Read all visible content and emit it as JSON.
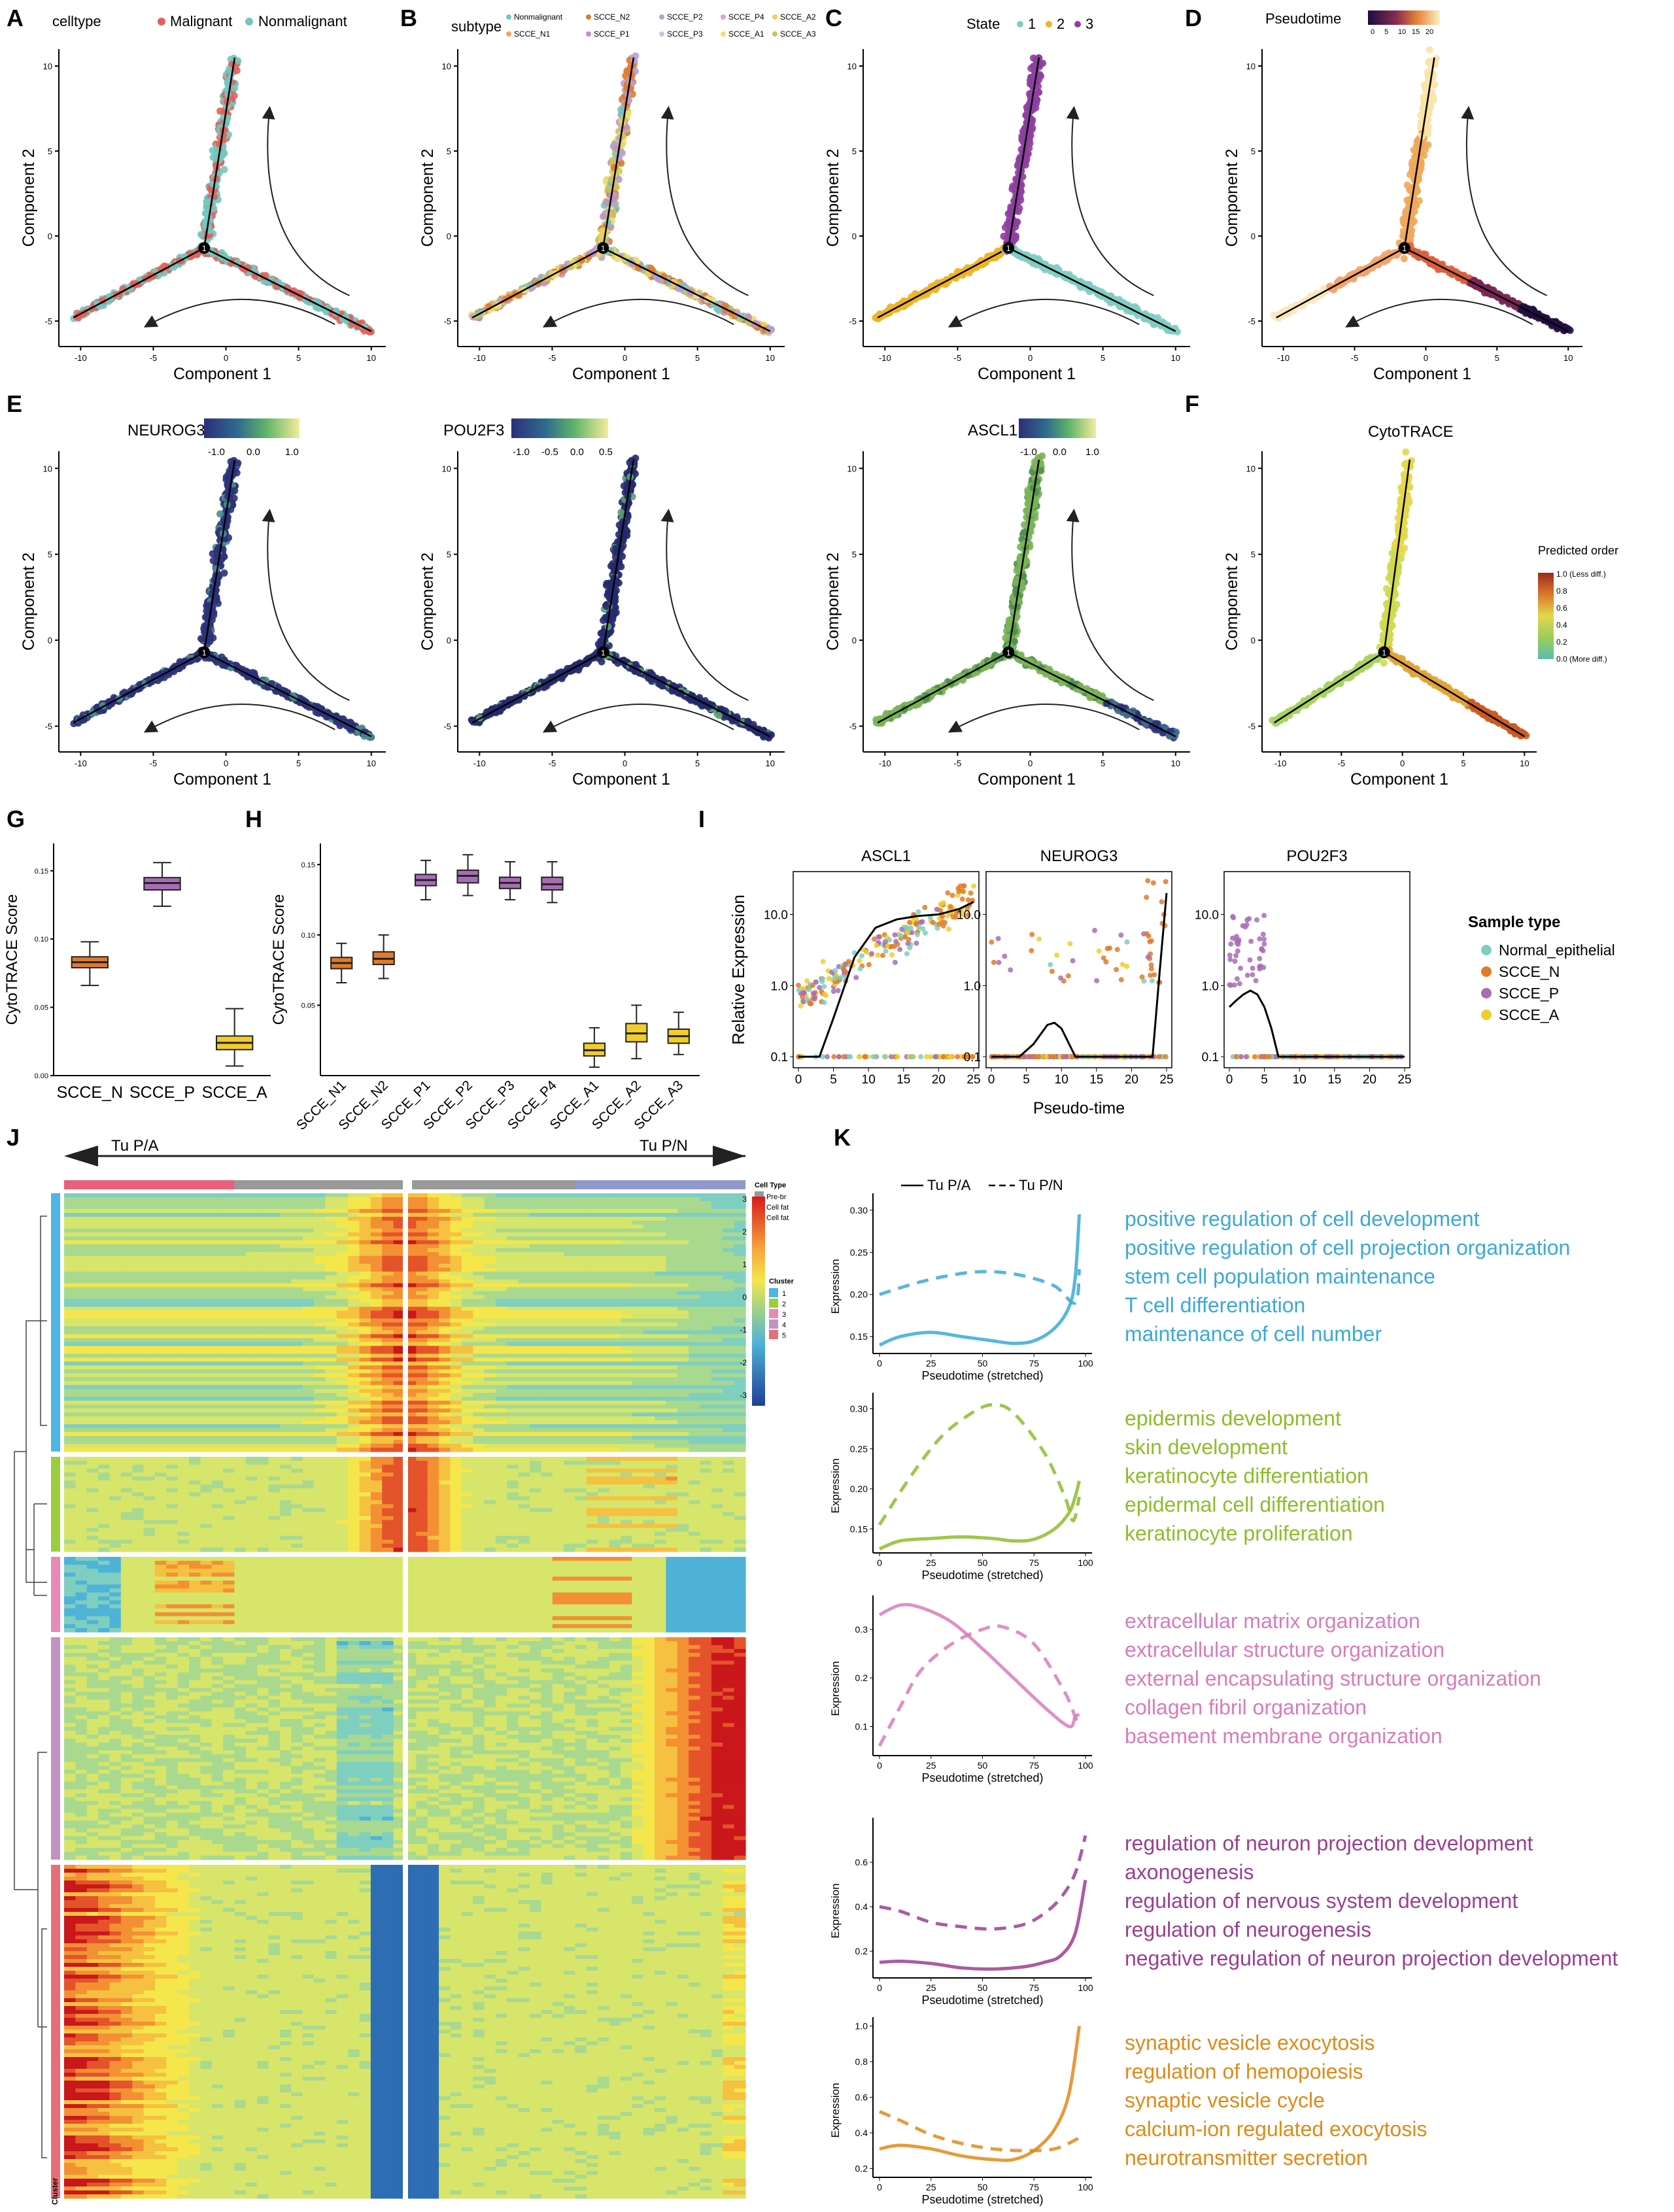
{
  "figure": {
    "panel_letters": [
      "A",
      "B",
      "C",
      "D",
      "E",
      "F",
      "G",
      "H",
      "I",
      "J",
      "K"
    ]
  },
  "colors": {
    "malignant": "#e0625a",
    "nonmalignant": "#73c7c0",
    "state1": "#7fcdc3",
    "state2": "#f0b323",
    "state3": "#8e3fa0",
    "scce_n": "#e07b2b",
    "scce_p": "#a76db5",
    "scce_a": "#f2cd2a",
    "normal_epithelial": "#7fcdc3",
    "tu_pa_bar": "#e8607b",
    "tu_pn_bar": "#8f99c9",
    "prebr_bar": "#999999",
    "c1": "#3aa9da",
    "c2": "#8dbd2a",
    "c3": "#d97cbb",
    "c4": "#9b3f92",
    "c5": "#e08a17",
    "cluster_col1": "#4fb5e4",
    "cluster_col2": "#9bcd3c",
    "cluster_col3": "#e88bb4",
    "cluster_col4": "#c293c2",
    "cluster_col5": "#e56f78"
  },
  "trajectory": {
    "xlabel": "Component 1",
    "ylabel": "Component 2",
    "xticks": [
      "-10",
      "-5",
      "0",
      "5",
      "10"
    ],
    "yticks": [
      "10",
      "5",
      "0",
      "-5"
    ],
    "branch_point_label": "1"
  },
  "panelA": {
    "legend_title": "celltype",
    "items": [
      "Malignant",
      "Nonmalignant"
    ]
  },
  "panelB": {
    "legend_title": "subtype",
    "items": [
      "Nonmalignant",
      "SCCE_N2",
      "SCCE_P2",
      "SCCE_P4",
      "SCCE_A2",
      "SCCE_N1",
      "SCCE_P1",
      "SCCE_P3",
      "SCCE_A1",
      "SCCE_A3"
    ]
  },
  "panelC": {
    "legend_title": "State",
    "items": [
      "1",
      "2",
      "3"
    ]
  },
  "panelD": {
    "legend_title": "Pseudotime",
    "ticks": [
      "0",
      "5",
      "10",
      "15",
      "20"
    ]
  },
  "panelE": [
    {
      "gene": "NEUROG3",
      "ticks": [
        "-1.0",
        "0.0",
        "1.0"
      ]
    },
    {
      "gene": "POU2F3",
      "ticks": [
        "-1.0",
        "-0.5",
        "0.0",
        "0.5"
      ]
    },
    {
      "gene": "ASCL1",
      "ticks": [
        "-1.0",
        "0.0",
        "1.0"
      ]
    }
  ],
  "panelF": {
    "title": "CytoTRACE",
    "legend_title": "Predicted order",
    "ticks": [
      "1.0 (Less diff.)",
      "0.8",
      "0.6",
      "0.4",
      "0.2",
      "0.0 (More diff.)"
    ]
  },
  "chart_data": [
    {
      "id": "G",
      "type": "box",
      "ylabel": "CytoTRACE Score",
      "categories": [
        "SCCE_N",
        "SCCE_P",
        "SCCE_A"
      ],
      "yticks": [
        "0.00",
        "0.05",
        "0.10",
        "0.15"
      ],
      "ylim": [
        0,
        0.17
      ],
      "boxes": [
        {
          "min": 0.066,
          "q1": 0.079,
          "median": 0.083,
          "q3": 0.087,
          "max": 0.098
        },
        {
          "min": 0.124,
          "q1": 0.136,
          "median": 0.141,
          "q3": 0.145,
          "max": 0.156
        },
        {
          "min": 0.007,
          "q1": 0.019,
          "median": 0.024,
          "q3": 0.029,
          "max": 0.049
        }
      ],
      "colors": [
        "#e07b2b",
        "#a76db5",
        "#f2cd2a"
      ]
    },
    {
      "id": "H",
      "type": "box",
      "ylabel": "CytoTRACE Score",
      "categories": [
        "SCCE_N1",
        "SCCE_N2",
        "SCCE_P1",
        "SCCE_P2",
        "SCCE_P3",
        "SCCE_P4",
        "SCCE_A1",
        "SCCE_A2",
        "SCCE_A3"
      ],
      "yticks": [
        "0.05",
        "0.10",
        "0.15"
      ],
      "ylim": [
        0,
        0.165
      ],
      "boxes": [
        {
          "min": 0.066,
          "q1": 0.076,
          "median": 0.08,
          "q3": 0.084,
          "max": 0.094
        },
        {
          "min": 0.069,
          "q1": 0.079,
          "median": 0.083,
          "q3": 0.088,
          "max": 0.1
        },
        {
          "min": 0.125,
          "q1": 0.135,
          "median": 0.139,
          "q3": 0.143,
          "max": 0.153
        },
        {
          "min": 0.128,
          "q1": 0.137,
          "median": 0.142,
          "q3": 0.146,
          "max": 0.157
        },
        {
          "min": 0.125,
          "q1": 0.133,
          "median": 0.137,
          "q3": 0.141,
          "max": 0.152
        },
        {
          "min": 0.123,
          "q1": 0.132,
          "median": 0.136,
          "q3": 0.141,
          "max": 0.152
        },
        {
          "min": 0.006,
          "q1": 0.014,
          "median": 0.018,
          "q3": 0.023,
          "max": 0.034
        },
        {
          "min": 0.012,
          "q1": 0.024,
          "median": 0.03,
          "q3": 0.037,
          "max": 0.05
        },
        {
          "min": 0.015,
          "q1": 0.023,
          "median": 0.028,
          "q3": 0.033,
          "max": 0.045
        }
      ],
      "colors": [
        "#e07b2b",
        "#e07b2b",
        "#a76db5",
        "#a76db5",
        "#a76db5",
        "#a76db5",
        "#f2cd2a",
        "#f2cd2a",
        "#f2cd2a"
      ]
    },
    {
      "id": "I",
      "type": "scatter+line",
      "ylabel": "Relative Expression",
      "xlabel": "Pseudo-time",
      "xticks": [
        "0",
        "5",
        "10",
        "15",
        "20",
        "25"
      ],
      "yticks": [
        "0.1",
        "1.0",
        "10.0"
      ],
      "ylim_log": [
        0.07,
        40
      ],
      "legend_title": "Sample type",
      "legend": [
        "Normal_epithelial",
        "SCCE_N",
        "SCCE_P",
        "SCCE_A"
      ],
      "facets": [
        {
          "gene": "ASCL1",
          "curve_x": [
            0,
            3,
            5,
            8,
            11,
            14,
            17,
            20,
            23,
            25
          ],
          "curve_y": [
            0.1,
            0.1,
            0.35,
            2.5,
            6.5,
            8.5,
            9.5,
            10,
            12,
            15
          ]
        },
        {
          "gene": "NEUROG3",
          "curve_x": [
            0,
            4,
            6,
            8,
            9,
            10,
            12,
            15,
            20,
            23,
            24,
            25
          ],
          "curve_y": [
            0.1,
            0.1,
            0.15,
            0.28,
            0.3,
            0.25,
            0.1,
            0.1,
            0.1,
            0.1,
            1.5,
            20
          ]
        },
        {
          "gene": "POU2F3",
          "curve_x": [
            0,
            1,
            2,
            3,
            4,
            5,
            6,
            7,
            8,
            10,
            15,
            20,
            25
          ],
          "curve_y": [
            0.5,
            0.62,
            0.75,
            0.85,
            0.75,
            0.5,
            0.25,
            0.1,
            0.1,
            0.1,
            0.1,
            0.1,
            0.1
          ]
        }
      ]
    },
    {
      "id": "J",
      "type": "heatmap",
      "left_arrow_label": "Tu P/A",
      "right_arrow_label": "Tu P/N",
      "legend_celltype_title": "Cell Type",
      "legend_celltype": [
        "Pre-br",
        "Cell fat",
        "Cell fat"
      ],
      "legend_scale": [
        "3",
        "2",
        "1",
        "0",
        "-1",
        "-2",
        "-3"
      ],
      "legend_cluster_title": "Cluster",
      "clusters": [
        "1",
        "2",
        "3",
        "4",
        "5"
      ],
      "bottom_label": "Cluster"
    },
    {
      "id": "K",
      "type": "line",
      "legend": [
        "Tu P/A",
        "Tu P/N"
      ],
      "xlabel": "Pseudotime (stretched)",
      "ylabel": "Expression",
      "xticks": [
        "0",
        "25",
        "50",
        "75",
        "100"
      ],
      "facets": [
        {
          "yticks": [
            "0.30",
            "0.25",
            "0.20",
            "0.15"
          ],
          "ylim": [
            0.13,
            0.32
          ],
          "solid_x": [
            0,
            10,
            25,
            40,
            55,
            65,
            75,
            85,
            92,
            95,
            97
          ],
          "solid_y": [
            0.14,
            0.15,
            0.155,
            0.15,
            0.145,
            0.142,
            0.145,
            0.16,
            0.185,
            0.22,
            0.295
          ],
          "dashed_x": [
            0,
            20,
            40,
            55,
            70,
            85,
            95,
            97
          ],
          "dashed_y": [
            0.2,
            0.215,
            0.225,
            0.227,
            0.222,
            0.21,
            0.19,
            0.23
          ],
          "terms": [
            "positive regulation of cell development",
            "positive regulation of cell projection organization",
            "stem cell population maintenance",
            "T cell differentiation",
            "maintenance of cell number"
          ]
        },
        {
          "yticks": [
            "0.30",
            "0.25",
            "0.20",
            "0.15"
          ],
          "ylim": [
            0.12,
            0.32
          ],
          "solid_x": [
            0,
            10,
            25,
            40,
            55,
            65,
            75,
            85,
            92,
            95,
            97
          ],
          "solid_y": [
            0.125,
            0.135,
            0.138,
            0.14,
            0.138,
            0.135,
            0.137,
            0.15,
            0.17,
            0.19,
            0.21
          ],
          "dashed_x": [
            0,
            15,
            30,
            45,
            55,
            65,
            80,
            90,
            94,
            97
          ],
          "dashed_y": [
            0.155,
            0.215,
            0.265,
            0.295,
            0.305,
            0.295,
            0.245,
            0.19,
            0.16,
            0.19
          ],
          "terms": [
            "epidermis development",
            "skin development",
            "keratinocyte differentiation",
            "epidermal cell differentiation",
            "keratinocyte proliferation"
          ]
        },
        {
          "yticks": [
            "0.3",
            "0.2",
            "0.1"
          ],
          "ylim": [
            0.04,
            0.37
          ],
          "solid_x": [
            0,
            10,
            20,
            35,
            50,
            65,
            80,
            92,
            95,
            97
          ],
          "solid_y": [
            0.33,
            0.35,
            0.345,
            0.315,
            0.26,
            0.2,
            0.14,
            0.1,
            0.12,
            0.125
          ],
          "dashed_x": [
            0,
            10,
            20,
            35,
            50,
            60,
            75,
            90,
            95,
            97
          ],
          "dashed_y": [
            0.06,
            0.14,
            0.215,
            0.27,
            0.3,
            0.305,
            0.27,
            0.17,
            0.12,
            0.11
          ],
          "terms": [
            "extracellular matrix organization",
            "extracellular structure organization",
            "external encapsulating structure organization",
            "collagen fibril organization",
            "basement membrane organization"
          ]
        },
        {
          "yticks": [
            "0.6",
            "0.4",
            "0.2"
          ],
          "ylim": [
            0.08,
            0.8
          ],
          "solid_x": [
            0,
            10,
            25,
            40,
            55,
            70,
            80,
            88,
            95,
            100
          ],
          "solid_y": [
            0.15,
            0.155,
            0.145,
            0.125,
            0.12,
            0.13,
            0.15,
            0.18,
            0.28,
            0.52
          ],
          "dashed_x": [
            0,
            10,
            25,
            40,
            55,
            70,
            80,
            88,
            95,
            100
          ],
          "dashed_y": [
            0.4,
            0.38,
            0.33,
            0.31,
            0.3,
            0.32,
            0.37,
            0.44,
            0.55,
            0.72
          ],
          "terms": [
            "regulation of neuron projection development",
            "axonogenesis",
            "regulation of nervous system development",
            "regulation of neurogenesis",
            "negative regulation of neuron projection development"
          ]
        },
        {
          "yticks": [
            "1.0",
            "0.8",
            "0.6",
            "0.4",
            "0.2"
          ],
          "ylim": [
            0.15,
            1.05
          ],
          "solid_x": [
            0,
            10,
            25,
            40,
            55,
            65,
            75,
            85,
            92,
            97
          ],
          "solid_y": [
            0.31,
            0.33,
            0.31,
            0.27,
            0.25,
            0.25,
            0.3,
            0.42,
            0.62,
            1.0
          ],
          "dashed_x": [
            0,
            10,
            25,
            40,
            55,
            70,
            85,
            95,
            97
          ],
          "dashed_y": [
            0.52,
            0.47,
            0.39,
            0.34,
            0.31,
            0.3,
            0.31,
            0.36,
            0.38
          ],
          "terms": [
            "synaptic vesicle exocytosis",
            "regulation of hemopoiesis",
            "synaptic vesicle cycle",
            "calcium-ion regulated exocytosis",
            "neurotransmitter secretion"
          ]
        }
      ]
    }
  ]
}
